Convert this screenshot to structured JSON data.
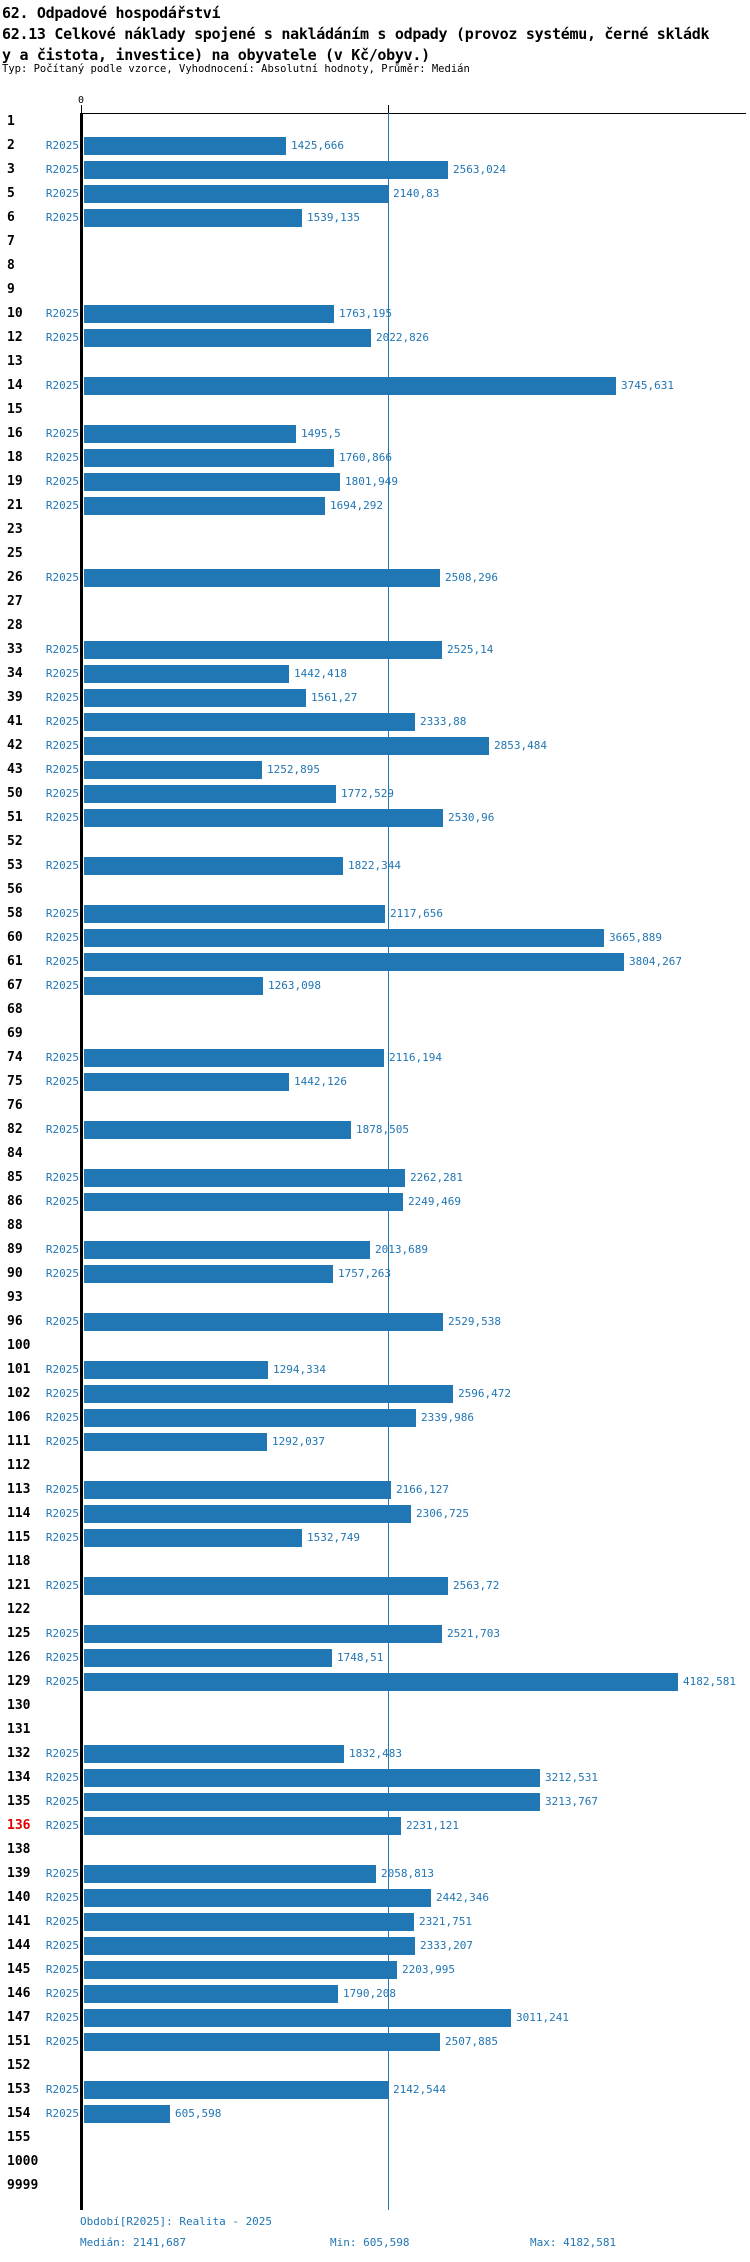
{
  "header": {
    "title": "62. Odpadové hospodářství",
    "subtitle_line1": "62.13 Celkové náklady spojené s nakládáním s odpady (provoz systému, černé skládk",
    "subtitle_line2": "y a čistota, investice) na obyvatele (v Kč/obyv.)",
    "meta": "Typ: Počítaný podle vzorce, Vyhodnocení: Absolutní hodnoty, Průměr: Medián"
  },
  "axis": {
    "zero_label": "0"
  },
  "footer": {
    "period": "Období[R2025]: Realita - 2025",
    "median": "Medián: 2141,687",
    "min": "Min: 605,598",
    "max": "Max: 4182,581"
  },
  "colors": {
    "bar": "#2176B4",
    "median_line": "#2176B4",
    "highlight_row_number": "#E00000",
    "blue_text": "#2176B4"
  },
  "chart_data": {
    "type": "bar",
    "orientation": "horizontal",
    "title": "62.13 Celkové náklady spojené s nakládáním s odpady (provoz systému, černé skládky a čistota, investice) na obyvatele (v Kč/obyv.)",
    "series_label": "R2025",
    "unit": "Kč/obyv.",
    "median": 2141.687,
    "min": 605.598,
    "max": 4182.581,
    "xlim": [
      0,
      4700
    ],
    "grid": "median-line-only",
    "legend_position": "none",
    "rows": [
      {
        "id": "1",
        "value": null,
        "value_text": ""
      },
      {
        "id": "2",
        "value": 1425.666,
        "value_text": "1425,666"
      },
      {
        "id": "3",
        "value": 2563.024,
        "value_text": "2563,024"
      },
      {
        "id": "5",
        "value": 2140.83,
        "value_text": "2140,83"
      },
      {
        "id": "6",
        "value": 1539.135,
        "value_text": "1539,135"
      },
      {
        "id": "7",
        "value": null,
        "value_text": ""
      },
      {
        "id": "8",
        "value": null,
        "value_text": ""
      },
      {
        "id": "9",
        "value": null,
        "value_text": ""
      },
      {
        "id": "10",
        "value": 1763.195,
        "value_text": "1763,195"
      },
      {
        "id": "12",
        "value": 2022.826,
        "value_text": "2022,826"
      },
      {
        "id": "13",
        "value": null,
        "value_text": ""
      },
      {
        "id": "14",
        "value": 3745.631,
        "value_text": "3745,631"
      },
      {
        "id": "15",
        "value": null,
        "value_text": ""
      },
      {
        "id": "16",
        "value": 1495.5,
        "value_text": "1495,5"
      },
      {
        "id": "18",
        "value": 1760.866,
        "value_text": "1760,866"
      },
      {
        "id": "19",
        "value": 1801.949,
        "value_text": "1801,949"
      },
      {
        "id": "21",
        "value": 1694.292,
        "value_text": "1694,292"
      },
      {
        "id": "23",
        "value": null,
        "value_text": ""
      },
      {
        "id": "25",
        "value": null,
        "value_text": ""
      },
      {
        "id": "26",
        "value": 2508.296,
        "value_text": "2508,296"
      },
      {
        "id": "27",
        "value": null,
        "value_text": ""
      },
      {
        "id": "28",
        "value": null,
        "value_text": ""
      },
      {
        "id": "33",
        "value": 2525.14,
        "value_text": "2525,14"
      },
      {
        "id": "34",
        "value": 1442.418,
        "value_text": "1442,418"
      },
      {
        "id": "39",
        "value": 1561.27,
        "value_text": "1561,27"
      },
      {
        "id": "41",
        "value": 2333.88,
        "value_text": "2333,88"
      },
      {
        "id": "42",
        "value": 2853.484,
        "value_text": "2853,484"
      },
      {
        "id": "43",
        "value": 1252.895,
        "value_text": "1252,895"
      },
      {
        "id": "50",
        "value": 1772.529,
        "value_text": "1772,529"
      },
      {
        "id": "51",
        "value": 2530.96,
        "value_text": "2530,96"
      },
      {
        "id": "52",
        "value": null,
        "value_text": ""
      },
      {
        "id": "53",
        "value": 1822.344,
        "value_text": "1822,344"
      },
      {
        "id": "56",
        "value": null,
        "value_text": ""
      },
      {
        "id": "58",
        "value": 2117.656,
        "value_text": "2117,656"
      },
      {
        "id": "60",
        "value": 3665.889,
        "value_text": "3665,889"
      },
      {
        "id": "61",
        "value": 3804.267,
        "value_text": "3804,267"
      },
      {
        "id": "67",
        "value": 1263.098,
        "value_text": "1263,098"
      },
      {
        "id": "68",
        "value": null,
        "value_text": ""
      },
      {
        "id": "69",
        "value": null,
        "value_text": ""
      },
      {
        "id": "74",
        "value": 2116.194,
        "value_text": "2116,194"
      },
      {
        "id": "75",
        "value": 1442.126,
        "value_text": "1442,126"
      },
      {
        "id": "76",
        "value": null,
        "value_text": ""
      },
      {
        "id": "82",
        "value": 1878.505,
        "value_text": "1878,505"
      },
      {
        "id": "84",
        "value": null,
        "value_text": ""
      },
      {
        "id": "85",
        "value": 2262.281,
        "value_text": "2262,281"
      },
      {
        "id": "86",
        "value": 2249.469,
        "value_text": "2249,469"
      },
      {
        "id": "88",
        "value": null,
        "value_text": ""
      },
      {
        "id": "89",
        "value": 2013.689,
        "value_text": "2013,689"
      },
      {
        "id": "90",
        "value": 1757.263,
        "value_text": "1757,263"
      },
      {
        "id": "93",
        "value": null,
        "value_text": ""
      },
      {
        "id": "96",
        "value": 2529.538,
        "value_text": "2529,538"
      },
      {
        "id": "100",
        "value": null,
        "value_text": ""
      },
      {
        "id": "101",
        "value": 1294.334,
        "value_text": "1294,334"
      },
      {
        "id": "102",
        "value": 2596.472,
        "value_text": "2596,472"
      },
      {
        "id": "106",
        "value": 2339.986,
        "value_text": "2339,986"
      },
      {
        "id": "111",
        "value": 1292.037,
        "value_text": "1292,037"
      },
      {
        "id": "112",
        "value": null,
        "value_text": ""
      },
      {
        "id": "113",
        "value": 2166.127,
        "value_text": "2166,127"
      },
      {
        "id": "114",
        "value": 2306.725,
        "value_text": "2306,725"
      },
      {
        "id": "115",
        "value": 1532.749,
        "value_text": "1532,749"
      },
      {
        "id": "118",
        "value": null,
        "value_text": ""
      },
      {
        "id": "121",
        "value": 2563.72,
        "value_text": "2563,72"
      },
      {
        "id": "122",
        "value": null,
        "value_text": ""
      },
      {
        "id": "125",
        "value": 2521.703,
        "value_text": "2521,703"
      },
      {
        "id": "126",
        "value": 1748.51,
        "value_text": "1748,51"
      },
      {
        "id": "129",
        "value": 4182.581,
        "value_text": "4182,581"
      },
      {
        "id": "130",
        "value": null,
        "value_text": ""
      },
      {
        "id": "131",
        "value": null,
        "value_text": ""
      },
      {
        "id": "132",
        "value": 1832.483,
        "value_text": "1832,483"
      },
      {
        "id": "134",
        "value": 3212.531,
        "value_text": "3212,531"
      },
      {
        "id": "135",
        "value": 3213.767,
        "value_text": "3213,767"
      },
      {
        "id": "136",
        "value": 2231.121,
        "value_text": "2231,121",
        "highlight": true
      },
      {
        "id": "138",
        "value": null,
        "value_text": ""
      },
      {
        "id": "139",
        "value": 2058.813,
        "value_text": "2058,813"
      },
      {
        "id": "140",
        "value": 2442.346,
        "value_text": "2442,346"
      },
      {
        "id": "141",
        "value": 2321.751,
        "value_text": "2321,751"
      },
      {
        "id": "144",
        "value": 2333.207,
        "value_text": "2333,207"
      },
      {
        "id": "145",
        "value": 2203.995,
        "value_text": "2203,995"
      },
      {
        "id": "146",
        "value": 1790.208,
        "value_text": "1790,208"
      },
      {
        "id": "147",
        "value": 3011.241,
        "value_text": "3011,241"
      },
      {
        "id": "151",
        "value": 2507.885,
        "value_text": "2507,885"
      },
      {
        "id": "152",
        "value": null,
        "value_text": ""
      },
      {
        "id": "153",
        "value": 2142.544,
        "value_text": "2142,544"
      },
      {
        "id": "154",
        "value": 605.598,
        "value_text": "605,598"
      },
      {
        "id": "155",
        "value": null,
        "value_text": ""
      },
      {
        "id": "1000",
        "value": null,
        "value_text": ""
      },
      {
        "id": "9999",
        "value": null,
        "value_text": ""
      }
    ]
  }
}
